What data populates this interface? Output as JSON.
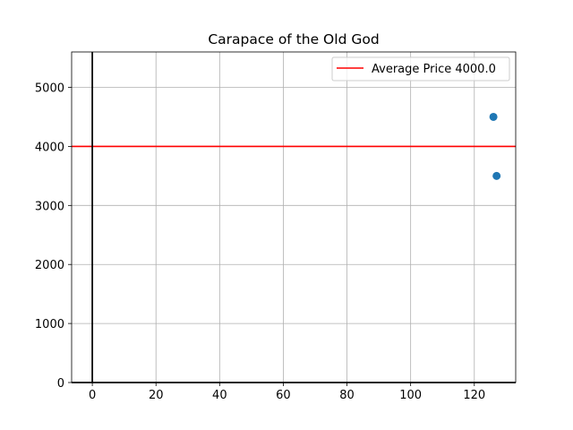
{
  "chart_data": {
    "type": "scatter",
    "title": "Carapace of the Old God",
    "xlabel": "",
    "ylabel": "",
    "xlim": [
      -6.5,
      133
    ],
    "ylim": [
      0,
      5600
    ],
    "x_ticks": [
      0,
      20,
      40,
      60,
      80,
      100,
      120
    ],
    "y_ticks": [
      0,
      1000,
      2000,
      3000,
      4000,
      5000
    ],
    "grid": true,
    "series": [
      {
        "color": "#1f77b4",
        "points": [
          {
            "x": 126,
            "y": 4500
          },
          {
            "x": 127,
            "y": 3500
          }
        ]
      }
    ],
    "reference_lines": [
      {
        "orientation": "horizontal",
        "value": 4000,
        "color": "#ff0000",
        "label": "Average Price 4000.0"
      },
      {
        "orientation": "vertical",
        "value": 0,
        "color": "#000000"
      },
      {
        "orientation": "horizontal",
        "value": 0,
        "color": "#000000"
      }
    ],
    "legend": {
      "placement": "upper right",
      "entries": [
        "Average Price 4000.0"
      ]
    }
  }
}
